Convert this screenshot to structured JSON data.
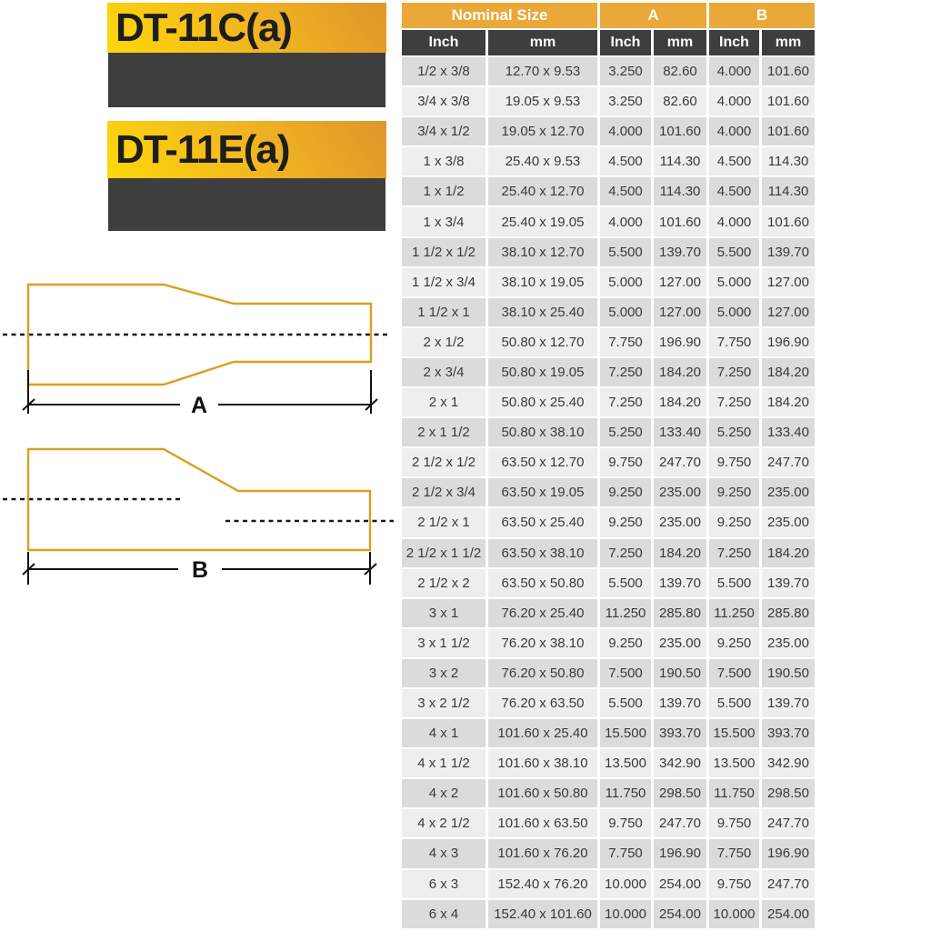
{
  "products": [
    {
      "code": "DT-11C(a)"
    },
    {
      "code": "DT-11E(a)"
    }
  ],
  "diagrams": [
    {
      "name": "concentric-reducer",
      "dim_label": "A"
    },
    {
      "name": "eccentric-reducer",
      "dim_label": "B"
    }
  ],
  "table": {
    "groups": [
      {
        "label": "Nominal Size",
        "span": 2
      },
      {
        "label": "A",
        "span": 2
      },
      {
        "label": "B",
        "span": 2
      }
    ],
    "subheaders": [
      "Inch",
      "mm",
      "Inch",
      "mm",
      "Inch",
      "mm"
    ],
    "rows": [
      [
        "1/2 x 3/8",
        "12.70 x 9.53",
        "3.250",
        "82.60",
        "4.000",
        "101.60"
      ],
      [
        "3/4 x 3/8",
        "19.05 x 9.53",
        "3.250",
        "82.60",
        "4.000",
        "101.60"
      ],
      [
        "3/4 x 1/2",
        "19.05 x 12.70",
        "4.000",
        "101.60",
        "4.000",
        "101.60"
      ],
      [
        "1 x 3/8",
        "25.40 x 9.53",
        "4.500",
        "114.30",
        "4.500",
        "114.30"
      ],
      [
        "1 x 1/2",
        "25.40 x 12.70",
        "4.500",
        "114.30",
        "4.500",
        "114.30"
      ],
      [
        "1 x 3/4",
        "25.40 x 19.05",
        "4.000",
        "101.60",
        "4.000",
        "101.60"
      ],
      [
        "1 1/2 x 1/2",
        "38.10 x 12.70",
        "5.500",
        "139.70",
        "5.500",
        "139.70"
      ],
      [
        "1 1/2 x 3/4",
        "38.10 x 19.05",
        "5.000",
        "127.00",
        "5.000",
        "127.00"
      ],
      [
        "1 1/2 x 1",
        "38.10 x 25.40",
        "5.000",
        "127.00",
        "5.000",
        "127.00"
      ],
      [
        "2 x 1/2",
        "50.80 x 12.70",
        "7.750",
        "196.90",
        "7.750",
        "196.90"
      ],
      [
        "2 x 3/4",
        "50.80 x 19.05",
        "7.250",
        "184.20",
        "7.250",
        "184.20"
      ],
      [
        "2 x 1",
        "50.80 x 25.40",
        "7.250",
        "184.20",
        "7.250",
        "184.20"
      ],
      [
        "2 x 1 1/2",
        "50.80 x 38.10",
        "5.250",
        "133.40",
        "5.250",
        "133.40"
      ],
      [
        "2 1/2 x 1/2",
        "63.50 x 12.70",
        "9.750",
        "247.70",
        "9.750",
        "247.70"
      ],
      [
        "2 1/2 x 3/4",
        "63.50 x 19.05",
        "9.250",
        "235.00",
        "9.250",
        "235.00"
      ],
      [
        "2 1/2 x 1",
        "63.50 x 25.40",
        "9.250",
        "235.00",
        "9.250",
        "235.00"
      ],
      [
        "2 1/2 x 1 1/2",
        "63.50 x 38.10",
        "7.250",
        "184.20",
        "7.250",
        "184.20"
      ],
      [
        "2 1/2 x 2",
        "63.50 x 50.80",
        "5.500",
        "139.70",
        "5.500",
        "139.70"
      ],
      [
        "3 x 1",
        "76.20 x 25.40",
        "11.250",
        "285.80",
        "11.250",
        "285.80"
      ],
      [
        "3 x 1 1/2",
        "76.20 x 38.10",
        "9.250",
        "235.00",
        "9.250",
        "235.00"
      ],
      [
        "3 x 2",
        "76.20 x 50.80",
        "7.500",
        "190.50",
        "7.500",
        "190.50"
      ],
      [
        "3 x 2 1/2",
        "76.20 x 63.50",
        "5.500",
        "139.70",
        "5.500",
        "139.70"
      ],
      [
        "4 x 1",
        "101.60 x 25.40",
        "15.500",
        "393.70",
        "15.500",
        "393.70"
      ],
      [
        "4 x 1 1/2",
        "101.60 x 38.10",
        "13.500",
        "342.90",
        "13.500",
        "342.90"
      ],
      [
        "4 x 2",
        "101.60 x 50.80",
        "11.750",
        "298.50",
        "11.750",
        "298.50"
      ],
      [
        "4 x 2 1/2",
        "101.60 x 63.50",
        "9.750",
        "247.70",
        "9.750",
        "247.70"
      ],
      [
        "4 x 3",
        "101.60 x 76.20",
        "7.750",
        "196.90",
        "7.750",
        "196.90"
      ],
      [
        "6 x 3",
        "152.40 x 76.20",
        "10.000",
        "254.00",
        "9.750",
        "247.70"
      ],
      [
        "6 x 4",
        "152.40 x 101.60",
        "10.000",
        "254.00",
        "10.000",
        "254.00"
      ]
    ]
  },
  "colors": {
    "header_gold": "#E9A838",
    "header_dark": "#3E3E3E",
    "row_dark": "#DBDBDB",
    "row_light": "#EEEEEE",
    "diagram_line": "#D9A01F",
    "title_gradient_from": "#DF962B",
    "title_gradient_to": "#FFD70A"
  }
}
